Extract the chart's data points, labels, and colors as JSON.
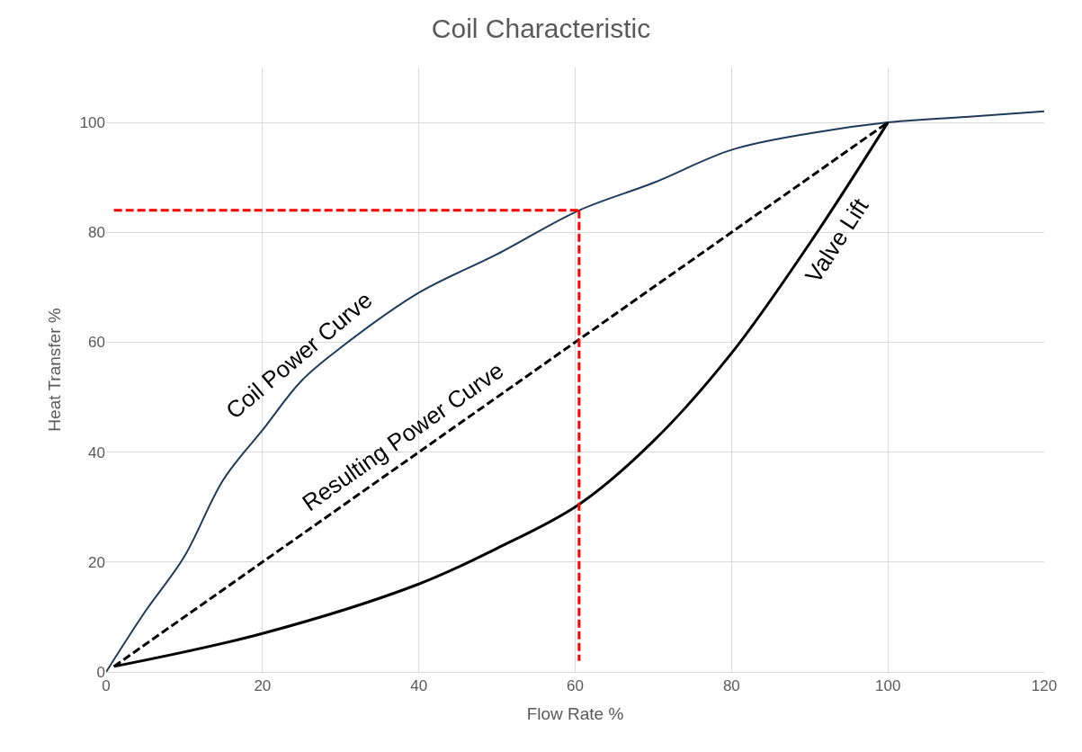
{
  "chart_data": {
    "type": "line",
    "title": "Coil Characteristic",
    "xlabel": "Flow Rate %",
    "ylabel": "Heat Transfer %",
    "xlim": [
      0,
      120
    ],
    "xticks": [
      0,
      20,
      40,
      60,
      80,
      100,
      120
    ],
    "ylim": [
      0,
      110
    ],
    "yticks": [
      0,
      20,
      40,
      60,
      80,
      100
    ],
    "grid": true,
    "legend": false,
    "line_style": "solid",
    "marker": "none",
    "series": [
      {
        "name": "Coil Power Curve",
        "color": "#1f3a5a",
        "x": [
          0,
          5,
          10,
          15,
          20,
          25,
          30,
          40,
          50,
          60.5,
          70,
          80,
          90,
          100,
          110,
          120
        ],
        "values": [
          0,
          11,
          21,
          35,
          44,
          53,
          59,
          69,
          76,
          84,
          89,
          95,
          98,
          100,
          101,
          102
        ]
      },
      {
        "name": "Resulting Power Curve",
        "color": "#000000",
        "line_style": "dashed",
        "x": [
          1,
          100
        ],
        "values": [
          1,
          100
        ]
      },
      {
        "name": "Valve Lift",
        "color": "#000000",
        "x": [
          1,
          20,
          40,
          50,
          60.5,
          70,
          80,
          90,
          100
        ],
        "values": [
          1,
          7,
          16,
          22.5,
          30.5,
          42,
          58,
          78,
          100
        ]
      },
      {
        "color": "#ff0000",
        "line_style": "dashed",
        "x": [
          1,
          60.5
        ],
        "values": [
          84,
          84
        ]
      },
      {
        "color": "#ff0000",
        "line_style": "dashed",
        "x": [
          60.5,
          60.5
        ],
        "values": [
          84,
          2
        ]
      }
    ]
  }
}
